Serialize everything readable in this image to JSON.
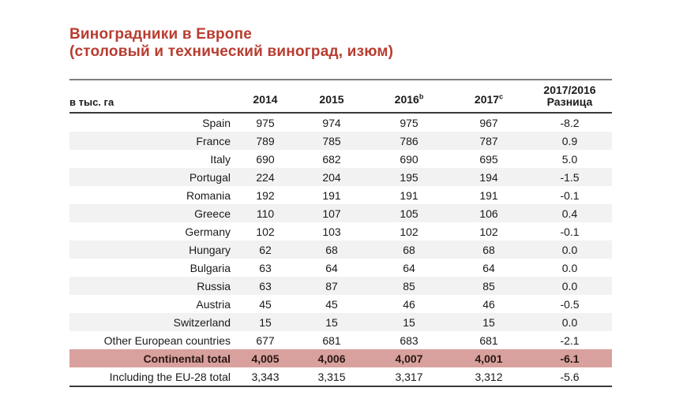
{
  "title": {
    "line1": "Виноградники в Европе",
    "line2": "(столовый и технический виноград, изюм)"
  },
  "colors": {
    "title_red": "#b83c30",
    "row_stripe": "#f2f2f2",
    "highlight_row_bg": "#d8a19d",
    "highlight_row_text": "#2a1714",
    "rule_top": "#7f7f7f",
    "rule_dark": "#3b3b3b",
    "body_text": "#1a1a1a"
  },
  "table": {
    "unit_label": "в тыс. га",
    "columns": [
      {
        "label": "2014",
        "sup": ""
      },
      {
        "label": "2015",
        "sup": ""
      },
      {
        "label": "2016",
        "sup": "b"
      },
      {
        "label": "2017",
        "sup": "c"
      },
      {
        "label": "2017/2016",
        "label2": "Разница"
      }
    ],
    "rows": [
      {
        "label": "Spain",
        "values": [
          "975",
          "974",
          "975",
          "967",
          "-8.2"
        ],
        "highlight": false
      },
      {
        "label": "France",
        "values": [
          "789",
          "785",
          "786",
          "787",
          "0.9"
        ],
        "highlight": false
      },
      {
        "label": "Italy",
        "values": [
          "690",
          "682",
          "690",
          "695",
          "5.0"
        ],
        "highlight": false
      },
      {
        "label": "Portugal",
        "values": [
          "224",
          "204",
          "195",
          "194",
          "-1.5"
        ],
        "highlight": false
      },
      {
        "label": "Romania",
        "values": [
          "192",
          "191",
          "191",
          "191",
          "-0.1"
        ],
        "highlight": false
      },
      {
        "label": "Greece",
        "values": [
          "110",
          "107",
          "105",
          "106",
          "0.4"
        ],
        "highlight": false
      },
      {
        "label": "Germany",
        "values": [
          "102",
          "103",
          "102",
          "102",
          "-0.1"
        ],
        "highlight": false
      },
      {
        "label": "Hungary",
        "values": [
          "62",
          "68",
          "68",
          "68",
          "0.0"
        ],
        "highlight": false
      },
      {
        "label": "Bulgaria",
        "values": [
          "63",
          "64",
          "64",
          "64",
          "0.0"
        ],
        "highlight": false
      },
      {
        "label": "Russia",
        "values": [
          "63",
          "87",
          "85",
          "85",
          "0.0"
        ],
        "highlight": false
      },
      {
        "label": "Austria",
        "values": [
          "45",
          "45",
          "46",
          "46",
          "-0.5"
        ],
        "highlight": false
      },
      {
        "label": "Switzerland",
        "values": [
          "15",
          "15",
          "15",
          "15",
          "0.0"
        ],
        "highlight": false
      },
      {
        "label": "Other European countries",
        "values": [
          "677",
          "681",
          "683",
          "681",
          "-2.1"
        ],
        "highlight": false
      },
      {
        "label": "Continental total",
        "values": [
          "4,005",
          "4,006",
          "4,007",
          "4,001",
          "-6.1"
        ],
        "highlight": true
      },
      {
        "label": "Including the EU-28 total",
        "values": [
          "3,343",
          "3,315",
          "3,317",
          "3,312",
          "-5.6"
        ],
        "highlight": false
      }
    ]
  }
}
